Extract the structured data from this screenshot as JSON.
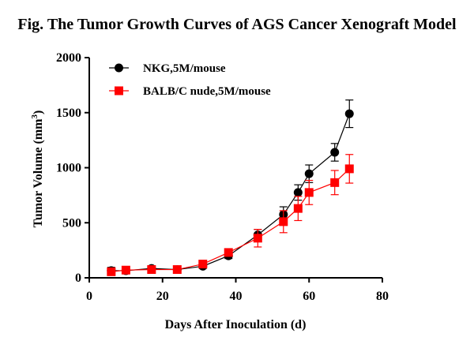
{
  "chart_data": {
    "type": "line",
    "title": "Fig. The Tumor Growth Curves of AGS Cancer Xenograft Model",
    "xlabel": "Days After Inoculation (d)",
    "ylabel_prefix": "Tumor Volume (mm",
    "ylabel_superscript": "3",
    "ylabel_suffix": ")",
    "xlim": [
      0,
      80
    ],
    "ylim": [
      0,
      2000
    ],
    "x_ticks": [
      0,
      20,
      40,
      60,
      80
    ],
    "y_ticks": [
      0,
      500,
      1000,
      1500,
      2000
    ],
    "x_tick_labels": [
      "0",
      "20",
      "40",
      "60",
      "80"
    ],
    "y_tick_labels": [
      "0",
      "500",
      "1000",
      "1500",
      "2000"
    ],
    "grid": false,
    "legend_position": "top-left",
    "series": [
      {
        "name": "NKG,5M/mouse",
        "color": "#000000",
        "marker": "circle",
        "x": [
          6,
          10,
          17,
          24,
          31,
          38,
          46,
          53,
          57,
          60,
          67,
          71
        ],
        "y": [
          65,
          65,
          85,
          75,
          105,
          200,
          390,
          575,
          775,
          945,
          1140,
          1490
        ],
        "err": [
          30,
          25,
          25,
          25,
          20,
          25,
          50,
          70,
          70,
          80,
          80,
          125
        ]
      },
      {
        "name": "BALB/C nude,5M/mouse",
        "color": "#ff0000",
        "marker": "square",
        "x": [
          6,
          10,
          17,
          24,
          31,
          38,
          46,
          53,
          57,
          60,
          67,
          71
        ],
        "y": [
          55,
          70,
          75,
          75,
          125,
          230,
          360,
          510,
          630,
          775,
          865,
          990
        ],
        "err": [
          25,
          25,
          25,
          25,
          20,
          30,
          80,
          100,
          110,
          110,
          110,
          130
        ]
      }
    ]
  }
}
